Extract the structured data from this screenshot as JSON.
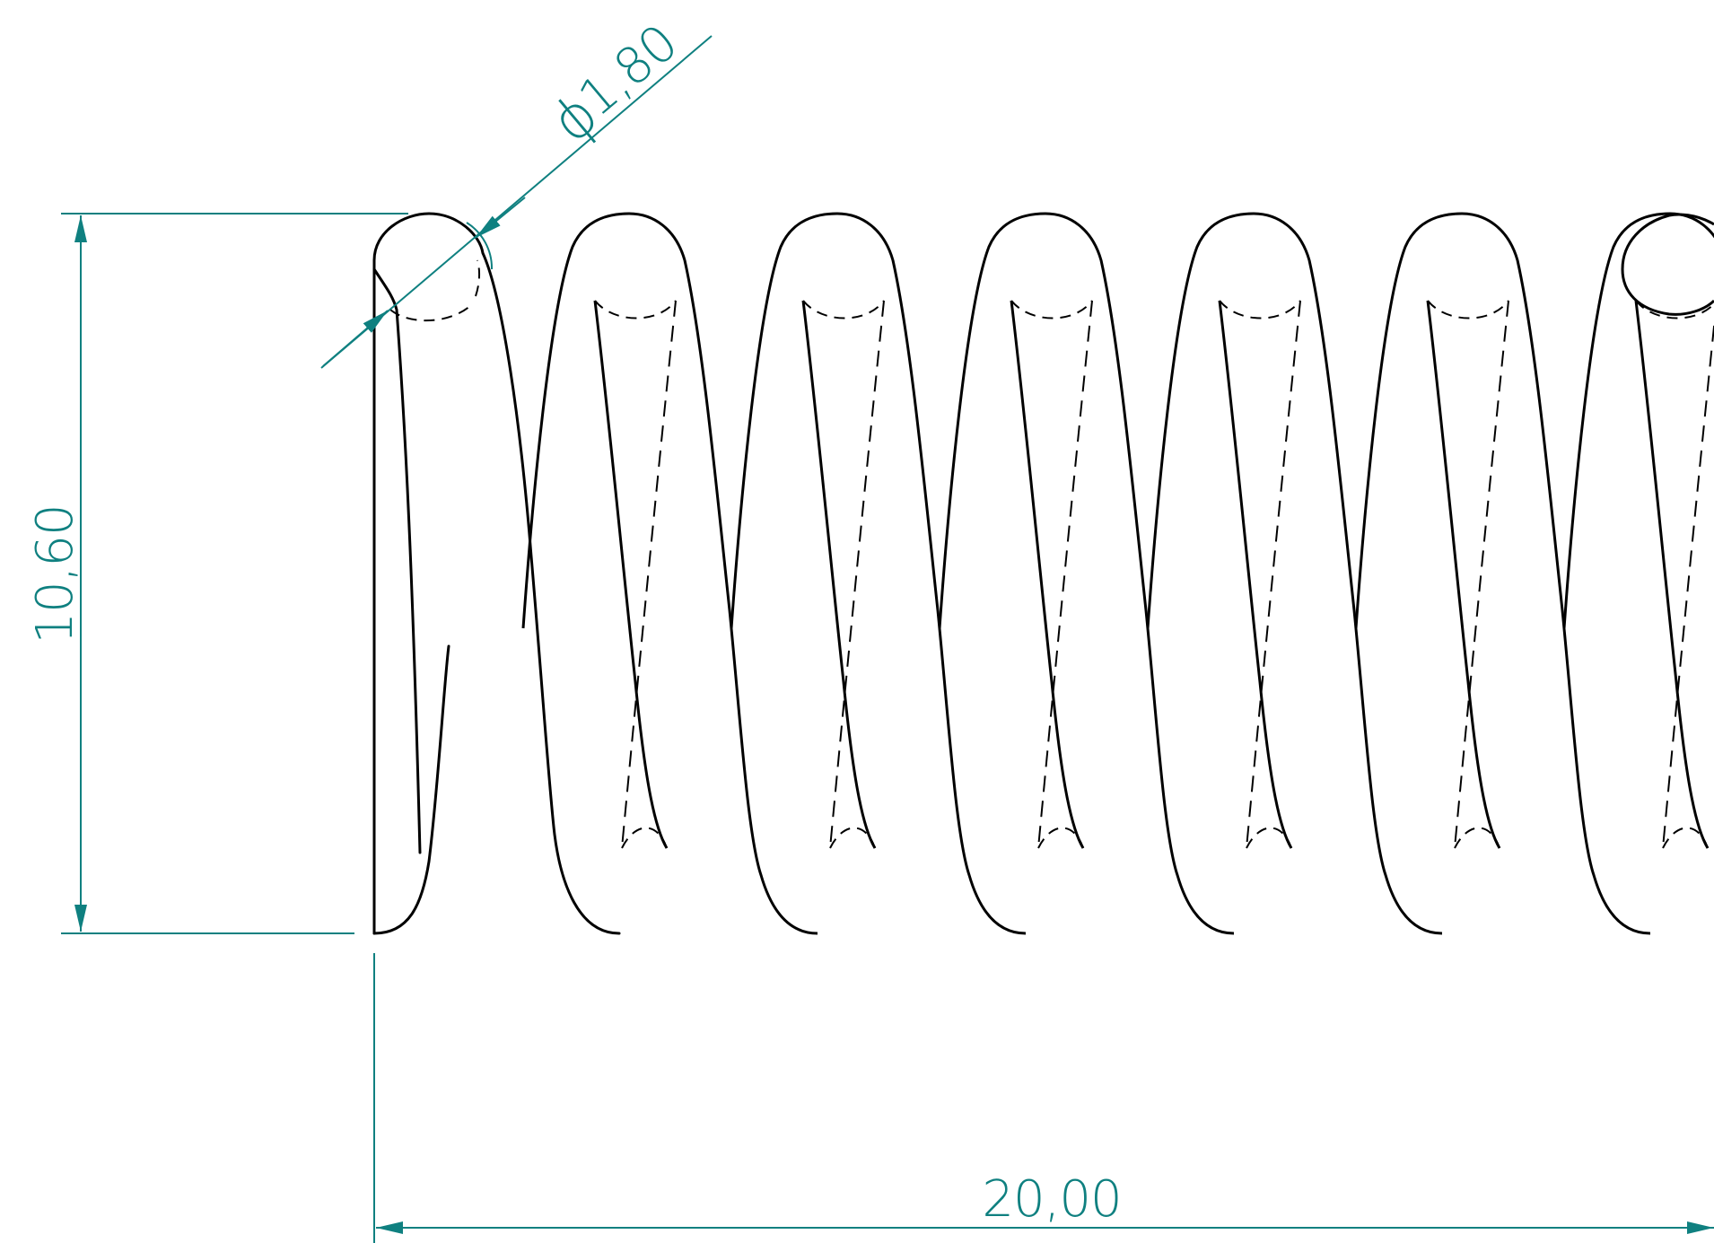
{
  "drawing": {
    "dimensions": {
      "diameter_symbol": "ϕ",
      "wire_diameter": "1,80",
      "height": "10,60",
      "length": "20,00"
    },
    "colors": {
      "dimension": "#0f8080",
      "outline": "#000000",
      "background": "#ffffff"
    }
  }
}
